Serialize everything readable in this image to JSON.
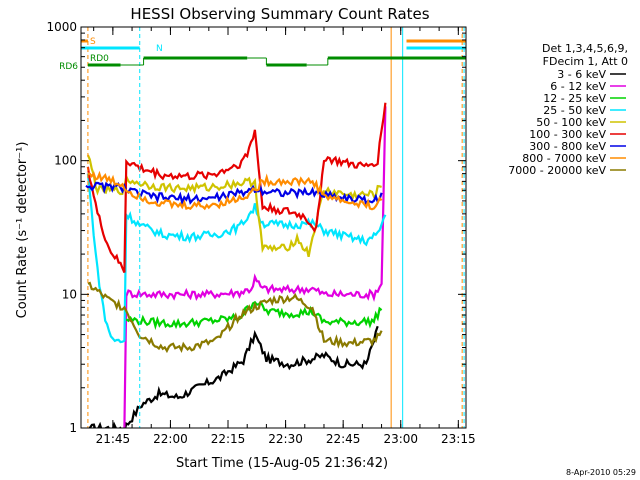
{
  "chart_data": {
    "type": "line",
    "title": "HESSI Observing Summary Count Rates",
    "xlabel": "Start Time (15-Aug-05 21:36:42)",
    "ylabel": "Count Rate (s⁻¹ detector⁻¹)",
    "ylim": [
      1,
      1000
    ],
    "yscale": "log",
    "xlim": [
      "21:36:42",
      "23:17:00"
    ],
    "x_ticks": [
      "21:45",
      "22:00",
      "22:15",
      "22:30",
      "22:45",
      "23:00",
      "23:15"
    ],
    "y_ticks": [
      "1",
      "10",
      "100",
      "1000"
    ],
    "footer_date": "8-Apr-2010 05:29",
    "legend": {
      "placement": "right",
      "header": [
        "Det 1,3,4,5,6,9,",
        "FDecim 1, Att 0"
      ],
      "entries": [
        {
          "label": "3 - 6 keV",
          "color": "#000000"
        },
        {
          "label": "6 - 12 keV",
          "color": "#e100e1"
        },
        {
          "label": "12 - 25 keV",
          "color": "#00d200"
        },
        {
          "label": "25 - 50 keV",
          "color": "#00e6ff"
        },
        {
          "label": "50 - 100 keV",
          "color": "#cfc300"
        },
        {
          "label": "100 - 300 keV",
          "color": "#e60000"
        },
        {
          "label": "300 - 800 keV",
          "color": "#0000e6"
        },
        {
          "label": "800 - 7000 keV",
          "color": "#ff8c00"
        },
        {
          "label": "7000 - 20000 keV",
          "color": "#8a7a00"
        }
      ]
    },
    "flags": [
      {
        "label": "S",
        "color": "#ff8c00",
        "segments": [
          [
            "21:36:42",
            "21:38:30"
          ],
          [
            "23:01:30",
            "23:17:00"
          ]
        ]
      },
      {
        "label": "N",
        "color": "#00e6ff",
        "segments": [
          [
            "21:36:42",
            "21:52:00"
          ],
          [
            "23:01:30",
            "23:17:00"
          ]
        ]
      },
      {
        "label": "RD0",
        "color": "#008c00",
        "segments": [
          [
            "21:38:30",
            "21:47:00"
          ],
          [
            "21:53:00",
            "22:20:00"
          ],
          [
            "22:25:00",
            "22:35:30"
          ],
          [
            "22:41:00",
            "23:17:00"
          ]
        ]
      },
      {
        "label": "RD6",
        "color": "#008c00",
        "segments": [
          [
            "21:38:30",
            "21:47:00"
          ],
          [
            "21:53:00",
            "22:20:00"
          ],
          [
            "22:25:00",
            "22:35:30"
          ],
          [
            "22:41:00",
            "23:17:00"
          ]
        ]
      }
    ],
    "vertical_markers": [
      {
        "time": "21:36:42",
        "color": "#00e6ff",
        "style": "solid"
      },
      {
        "time": "21:38:30",
        "color": "#ff8c00",
        "style": "dashed"
      },
      {
        "time": "21:52:00",
        "color": "#00e6ff",
        "style": "dashed"
      },
      {
        "time": "22:57:30",
        "color": "#ff8c00",
        "style": "solid"
      },
      {
        "time": "23:00:30",
        "color": "#00e6ff",
        "style": "solid"
      },
      {
        "time": "23:16:00",
        "color": "#ff8c00",
        "style": "dashed"
      },
      {
        "time": "23:16:30",
        "color": "#00e6ff",
        "style": "dashed"
      }
    ],
    "series": [
      {
        "name": "3 - 6 keV",
        "color": "#000000",
        "points": [
          [
            "21:39:00",
            1
          ],
          [
            "21:48:00",
            1
          ],
          [
            "21:52:30",
            1.5
          ],
          [
            "21:57:00",
            1.8
          ],
          [
            "22:02:00",
            1.7
          ],
          [
            "22:07:00",
            2.0
          ],
          [
            "22:13:00",
            2.4
          ],
          [
            "22:19:00",
            3.2
          ],
          [
            "22:22:00",
            5.0
          ],
          [
            "22:25:00",
            3.3
          ],
          [
            "22:31:00",
            3.0
          ],
          [
            "22:37:00",
            3.3
          ],
          [
            "22:40:00",
            3.5
          ],
          [
            "22:45:00",
            3.0
          ],
          [
            "22:51:00",
            3.0
          ],
          [
            "22:54:00",
            5.5
          ]
        ]
      },
      {
        "name": "6 - 12 keV",
        "color": "#e100e1",
        "points": [
          [
            "21:48:00",
            1
          ],
          [
            "21:48:30",
            10.2
          ],
          [
            "21:55:00",
            10.0
          ],
          [
            "22:02:00",
            10.0
          ],
          [
            "22:10:00",
            10.0
          ],
          [
            "22:18:00",
            10.3
          ],
          [
            "22:21:00",
            11.0
          ],
          [
            "22:22:00",
            13.0
          ],
          [
            "22:24:00",
            11.0
          ],
          [
            "22:30:00",
            10.8
          ],
          [
            "22:37:00",
            11.0
          ],
          [
            "22:40:00",
            10.0
          ],
          [
            "22:47:00",
            10.0
          ],
          [
            "22:53:00",
            10.0
          ],
          [
            "22:55:00",
            12.0
          ],
          [
            "22:56:00",
            250
          ]
        ]
      },
      {
        "name": "12 - 25 keV",
        "color": "#00d200",
        "points": [
          [
            "21:48:30",
            6.5
          ],
          [
            "21:55:00",
            6.2
          ],
          [
            "22:02:00",
            6.0
          ],
          [
            "22:10:00",
            6.3
          ],
          [
            "22:18:00",
            6.7
          ],
          [
            "22:22:00",
            9.0
          ],
          [
            "22:25:00",
            7.5
          ],
          [
            "22:31:00",
            7.2
          ],
          [
            "22:37:00",
            7.4
          ],
          [
            "22:40:00",
            6.2
          ],
          [
            "22:47:00",
            6.2
          ],
          [
            "22:53:00",
            6.3
          ],
          [
            "22:55:00",
            8.0
          ]
        ]
      },
      {
        "name": "25 - 50 keV",
        "color": "#00e6ff",
        "points": [
          [
            "21:38:30",
            80
          ],
          [
            "21:41:00",
            15
          ],
          [
            "21:43:00",
            6.5
          ],
          [
            "21:45:00",
            4.5
          ],
          [
            "21:48:00",
            4.5
          ],
          [
            "21:48:30",
            40
          ],
          [
            "21:52:00",
            33
          ],
          [
            "21:58:00",
            28
          ],
          [
            "22:05:00",
            27
          ],
          [
            "22:12:00",
            28
          ],
          [
            "22:18:00",
            32
          ],
          [
            "22:20:00",
            38
          ],
          [
            "22:22:00",
            45
          ],
          [
            "22:24:00",
            34
          ],
          [
            "22:30:00",
            33
          ],
          [
            "22:37:00",
            34
          ],
          [
            "22:40:00",
            30
          ],
          [
            "22:46:00",
            27
          ],
          [
            "22:51:00",
            25
          ],
          [
            "22:54:00",
            28
          ],
          [
            "22:56:00",
            40
          ]
        ]
      },
      {
        "name": "50 - 100 keV",
        "color": "#cfc300",
        "points": [
          [
            "21:38:30",
            110
          ],
          [
            "21:41:00",
            60
          ],
          [
            "21:48:00",
            60
          ],
          [
            "21:48:30",
            72
          ],
          [
            "21:55:00",
            65
          ],
          [
            "22:02:00",
            62
          ],
          [
            "22:10:00",
            63
          ],
          [
            "22:18:00",
            68
          ],
          [
            "22:22:00",
            70
          ],
          [
            "22:24:00",
            22
          ],
          [
            "22:30:00",
            22
          ],
          [
            "22:33:00",
            26
          ],
          [
            "22:36:00",
            20
          ],
          [
            "22:40:00",
            60
          ],
          [
            "22:47:00",
            55
          ],
          [
            "22:53:00",
            56
          ],
          [
            "22:55:00",
            65
          ]
        ]
      },
      {
        "name": "100 - 300 keV",
        "color": "#e60000",
        "points": [
          [
            "21:38:30",
            90
          ],
          [
            "21:41:00",
            40
          ],
          [
            "21:44:00",
            22
          ],
          [
            "21:48:00",
            15
          ],
          [
            "21:48:30",
            100
          ],
          [
            "21:52:00",
            88
          ],
          [
            "21:58:00",
            78
          ],
          [
            "22:05:00",
            76
          ],
          [
            "22:12:00",
            80
          ],
          [
            "22:18:00",
            95
          ],
          [
            "22:20:00",
            110
          ],
          [
            "22:22:00",
            170
          ],
          [
            "22:24:00",
            45
          ],
          [
            "22:30:00",
            42
          ],
          [
            "22:35:00",
            38
          ],
          [
            "22:38:00",
            30
          ],
          [
            "22:40:00",
            105
          ],
          [
            "22:46:00",
            95
          ],
          [
            "22:51:00",
            90
          ],
          [
            "22:54:00",
            100
          ],
          [
            "22:56:00",
            280
          ]
        ]
      },
      {
        "name": "300 - 800 keV",
        "color": "#0000e6",
        "points": [
          [
            "21:38:00",
            65
          ],
          [
            "21:48:00",
            63
          ],
          [
            "21:48:30",
            60
          ],
          [
            "21:55:00",
            54
          ],
          [
            "22:02:00",
            52
          ],
          [
            "22:10:00",
            52
          ],
          [
            "22:18:00",
            57
          ],
          [
            "22:22:00",
            62
          ],
          [
            "22:24:00",
            60
          ],
          [
            "22:31:00",
            57
          ],
          [
            "22:37:00",
            58
          ],
          [
            "22:40:00",
            56
          ],
          [
            "22:47:00",
            52
          ],
          [
            "22:53:00",
            50
          ],
          [
            "22:55:00",
            55
          ]
        ]
      },
      {
        "name": "800 - 7000 keV",
        "color": "#ff8c00",
        "points": [
          [
            "21:38:30",
            80
          ],
          [
            "21:44:00",
            72
          ],
          [
            "21:48:00",
            65
          ],
          [
            "21:48:30",
            60
          ],
          [
            "21:55:00",
            50
          ],
          [
            "22:02:00",
            46
          ],
          [
            "22:10:00",
            46
          ],
          [
            "22:18:00",
            52
          ],
          [
            "22:22:00",
            60
          ],
          [
            "22:24:00",
            70
          ],
          [
            "22:31:00",
            70
          ],
          [
            "22:37:00",
            70
          ],
          [
            "22:40:00",
            55
          ],
          [
            "22:47:00",
            48
          ],
          [
            "22:53:00",
            46
          ],
          [
            "22:55:00",
            50
          ]
        ]
      },
      {
        "name": "7000 - 20000 keV",
        "color": "#8a7a00",
        "points": [
          [
            "21:38:30",
            12
          ],
          [
            "21:44:00",
            9
          ],
          [
            "21:48:00",
            8
          ],
          [
            "21:52:00",
            5
          ],
          [
            "21:58:00",
            4
          ],
          [
            "22:05:00",
            4
          ],
          [
            "22:12:00",
            4.5
          ],
          [
            "22:18:00",
            7
          ],
          [
            "22:22:00",
            8
          ],
          [
            "22:26:00",
            9
          ],
          [
            "22:32:00",
            9.5
          ],
          [
            "22:37:00",
            8
          ],
          [
            "22:40:00",
            4.5
          ],
          [
            "22:47:00",
            4.3
          ],
          [
            "22:53:00",
            4.5
          ],
          [
            "22:55:00",
            5
          ]
        ]
      }
    ]
  }
}
